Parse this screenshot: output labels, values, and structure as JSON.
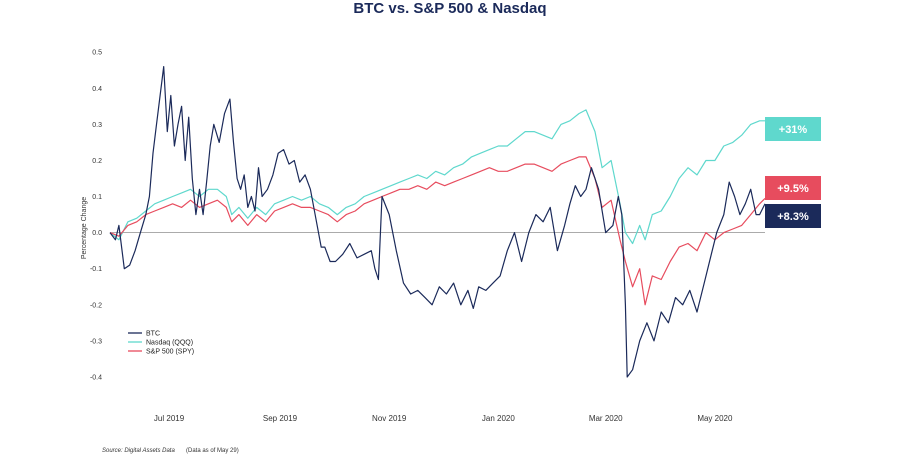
{
  "chart_data": {
    "type": "line",
    "title": "BTC vs. S&P 500 & Nasdaq",
    "ylabel": "Percentage Change",
    "ylim": [
      -0.45,
      0.52
    ],
    "xlim": [
      "2019-05-29",
      "2020-05-29"
    ],
    "yticks": [
      0.5,
      0.4,
      0.3,
      0.2,
      0.1,
      0.0,
      -0.1,
      -0.2,
      -0.3,
      -0.4
    ],
    "ytick_labels": [
      "0.5",
      "0.4",
      "0.3",
      "0.2",
      "0.1",
      "0.0",
      "-0.1",
      "-0.2",
      "-0.3",
      "-0.4"
    ],
    "xticks": [
      {
        "date": "2019-07-01",
        "label": "Jul 2019"
      },
      {
        "date": "2019-09-01",
        "label": "Sep 2019"
      },
      {
        "date": "2019-11-01",
        "label": "Nov 2019"
      },
      {
        "date": "2020-01-01",
        "label": "Jan 2020"
      },
      {
        "date": "2020-03-01",
        "label": "Mar 2020"
      },
      {
        "date": "2020-05-01",
        "label": "May 2020"
      }
    ],
    "legend_position": "bottom-left",
    "grid": false,
    "zero_line": true,
    "series": [
      {
        "name": "BTC",
        "color": "#1b2a5a",
        "x": [
          "2019-05-29",
          "2019-06-01",
          "2019-06-03",
          "2019-06-06",
          "2019-06-09",
          "2019-06-12",
          "2019-06-15",
          "2019-06-18",
          "2019-06-20",
          "2019-06-22",
          "2019-06-24",
          "2019-06-26",
          "2019-06-28",
          "2019-06-30",
          "2019-07-02",
          "2019-07-04",
          "2019-07-06",
          "2019-07-08",
          "2019-07-10",
          "2019-07-12",
          "2019-07-14",
          "2019-07-16",
          "2019-07-18",
          "2019-07-20",
          "2019-07-22",
          "2019-07-24",
          "2019-07-26",
          "2019-07-29",
          "2019-08-01",
          "2019-08-04",
          "2019-08-06",
          "2019-08-08",
          "2019-08-10",
          "2019-08-12",
          "2019-08-14",
          "2019-08-16",
          "2019-08-18",
          "2019-08-20",
          "2019-08-22",
          "2019-08-25",
          "2019-08-28",
          "2019-08-31",
          "2019-09-03",
          "2019-09-06",
          "2019-09-09",
          "2019-09-12",
          "2019-09-15",
          "2019-09-18",
          "2019-09-21",
          "2019-09-24",
          "2019-09-26",
          "2019-09-29",
          "2019-10-02",
          "2019-10-06",
          "2019-10-10",
          "2019-10-14",
          "2019-10-18",
          "2019-10-22",
          "2019-10-24",
          "2019-10-26",
          "2019-10-28",
          "2019-11-01",
          "2019-11-05",
          "2019-11-09",
          "2019-11-13",
          "2019-11-17",
          "2019-11-21",
          "2019-11-25",
          "2019-11-29",
          "2019-12-03",
          "2019-12-07",
          "2019-12-11",
          "2019-12-15",
          "2019-12-18",
          "2019-12-21",
          "2019-12-25",
          "2019-12-29",
          "2020-01-02",
          "2020-01-06",
          "2020-01-10",
          "2020-01-14",
          "2020-01-18",
          "2020-01-22",
          "2020-01-26",
          "2020-01-30",
          "2020-02-03",
          "2020-02-07",
          "2020-02-10",
          "2020-02-13",
          "2020-02-16",
          "2020-02-19",
          "2020-02-22",
          "2020-02-26",
          "2020-03-01",
          "2020-03-05",
          "2020-03-08",
          "2020-03-10",
          "2020-03-12",
          "2020-03-13",
          "2020-03-16",
          "2020-03-20",
          "2020-03-24",
          "2020-03-28",
          "2020-04-01",
          "2020-04-05",
          "2020-04-09",
          "2020-04-13",
          "2020-04-17",
          "2020-04-21",
          "2020-04-25",
          "2020-04-29",
          "2020-05-02",
          "2020-05-06",
          "2020-05-09",
          "2020-05-12",
          "2020-05-15",
          "2020-05-18",
          "2020-05-21",
          "2020-05-24",
          "2020-05-26",
          "2020-05-29"
        ],
        "values": [
          0.0,
          -0.02,
          0.02,
          -0.1,
          -0.09,
          -0.05,
          0.0,
          0.05,
          0.1,
          0.22,
          0.3,
          0.38,
          0.46,
          0.28,
          0.38,
          0.24,
          0.3,
          0.35,
          0.2,
          0.32,
          0.15,
          0.05,
          0.12,
          0.05,
          0.14,
          0.24,
          0.3,
          0.25,
          0.33,
          0.37,
          0.25,
          0.15,
          0.12,
          0.16,
          0.07,
          0.1,
          0.06,
          0.18,
          0.1,
          0.12,
          0.16,
          0.22,
          0.23,
          0.19,
          0.2,
          0.14,
          0.16,
          0.12,
          0.04,
          -0.04,
          -0.04,
          -0.08,
          -0.08,
          -0.06,
          -0.03,
          -0.07,
          -0.06,
          -0.05,
          -0.1,
          -0.13,
          0.1,
          0.05,
          -0.05,
          -0.14,
          -0.17,
          -0.16,
          -0.18,
          -0.2,
          -0.15,
          -0.17,
          -0.14,
          -0.2,
          -0.16,
          -0.21,
          -0.15,
          -0.16,
          -0.14,
          -0.12,
          -0.05,
          0.0,
          -0.08,
          0.0,
          0.05,
          0.03,
          0.07,
          -0.05,
          0.02,
          0.08,
          0.13,
          0.1,
          0.12,
          0.18,
          0.12,
          0.0,
          0.02,
          0.1,
          0.05,
          -0.2,
          -0.4,
          -0.38,
          -0.3,
          -0.25,
          -0.3,
          -0.22,
          -0.25,
          -0.18,
          -0.2,
          -0.16,
          -0.22,
          -0.14,
          -0.06,
          0.0,
          0.05,
          0.14,
          0.1,
          0.05,
          0.08,
          0.12,
          0.05,
          0.05,
          0.08
        ],
        "end_label": "+8.3%"
      },
      {
        "name": "Nasdaq (QQQ)",
        "color": "#5fd8cd",
        "x": [
          "2019-05-29",
          "2019-06-03",
          "2019-06-08",
          "2019-06-13",
          "2019-06-18",
          "2019-06-23",
          "2019-06-28",
          "2019-07-03",
          "2019-07-08",
          "2019-07-13",
          "2019-07-18",
          "2019-07-23",
          "2019-07-28",
          "2019-08-02",
          "2019-08-05",
          "2019-08-09",
          "2019-08-14",
          "2019-08-19",
          "2019-08-24",
          "2019-08-29",
          "2019-09-03",
          "2019-09-08",
          "2019-09-13",
          "2019-09-18",
          "2019-09-23",
          "2019-09-28",
          "2019-10-03",
          "2019-10-08",
          "2019-10-13",
          "2019-10-18",
          "2019-10-23",
          "2019-10-28",
          "2019-11-02",
          "2019-11-07",
          "2019-11-12",
          "2019-11-17",
          "2019-11-22",
          "2019-11-27",
          "2019-12-02",
          "2019-12-07",
          "2019-12-12",
          "2019-12-17",
          "2019-12-22",
          "2019-12-27",
          "2020-01-01",
          "2020-01-06",
          "2020-01-11",
          "2020-01-16",
          "2020-01-21",
          "2020-01-26",
          "2020-01-31",
          "2020-02-05",
          "2020-02-10",
          "2020-02-15",
          "2020-02-19",
          "2020-02-24",
          "2020-02-28",
          "2020-03-04",
          "2020-03-09",
          "2020-03-12",
          "2020-03-16",
          "2020-03-20",
          "2020-03-23",
          "2020-03-27",
          "2020-04-01",
          "2020-04-06",
          "2020-04-11",
          "2020-04-16",
          "2020-04-21",
          "2020-04-26",
          "2020-05-01",
          "2020-05-06",
          "2020-05-11",
          "2020-05-16",
          "2020-05-21",
          "2020-05-26",
          "2020-05-29"
        ],
        "values": [
          0.0,
          -0.02,
          0.03,
          0.04,
          0.06,
          0.08,
          0.09,
          0.1,
          0.11,
          0.12,
          0.1,
          0.12,
          0.12,
          0.1,
          0.05,
          0.07,
          0.04,
          0.07,
          0.05,
          0.08,
          0.09,
          0.1,
          0.09,
          0.1,
          0.08,
          0.07,
          0.05,
          0.07,
          0.08,
          0.1,
          0.11,
          0.12,
          0.13,
          0.14,
          0.15,
          0.16,
          0.15,
          0.17,
          0.16,
          0.18,
          0.19,
          0.21,
          0.22,
          0.23,
          0.24,
          0.24,
          0.26,
          0.28,
          0.28,
          0.27,
          0.26,
          0.3,
          0.31,
          0.33,
          0.34,
          0.28,
          0.18,
          0.2,
          0.08,
          0.0,
          -0.03,
          0.02,
          -0.02,
          0.05,
          0.06,
          0.1,
          0.15,
          0.18,
          0.16,
          0.2,
          0.2,
          0.24,
          0.25,
          0.27,
          0.3,
          0.31,
          0.31
        ],
        "end_label": "+31%"
      },
      {
        "name": "S&P 500 (SPY)",
        "color": "#e74c5e",
        "x": [
          "2019-05-29",
          "2019-06-03",
          "2019-06-08",
          "2019-06-13",
          "2019-06-18",
          "2019-06-23",
          "2019-06-28",
          "2019-07-03",
          "2019-07-08",
          "2019-07-13",
          "2019-07-18",
          "2019-07-23",
          "2019-07-28",
          "2019-08-02",
          "2019-08-05",
          "2019-08-09",
          "2019-08-14",
          "2019-08-19",
          "2019-08-24",
          "2019-08-29",
          "2019-09-03",
          "2019-09-08",
          "2019-09-13",
          "2019-09-18",
          "2019-09-23",
          "2019-09-28",
          "2019-10-03",
          "2019-10-08",
          "2019-10-13",
          "2019-10-18",
          "2019-10-23",
          "2019-10-28",
          "2019-11-02",
          "2019-11-07",
          "2019-11-12",
          "2019-11-17",
          "2019-11-22",
          "2019-11-27",
          "2019-12-02",
          "2019-12-07",
          "2019-12-12",
          "2019-12-17",
          "2019-12-22",
          "2019-12-27",
          "2020-01-01",
          "2020-01-06",
          "2020-01-11",
          "2020-01-16",
          "2020-01-21",
          "2020-01-26",
          "2020-01-31",
          "2020-02-05",
          "2020-02-10",
          "2020-02-15",
          "2020-02-19",
          "2020-02-24",
          "2020-02-28",
          "2020-03-04",
          "2020-03-09",
          "2020-03-12",
          "2020-03-16",
          "2020-03-20",
          "2020-03-23",
          "2020-03-27",
          "2020-04-01",
          "2020-04-06",
          "2020-04-11",
          "2020-04-16",
          "2020-04-21",
          "2020-04-26",
          "2020-05-01",
          "2020-05-06",
          "2020-05-11",
          "2020-05-16",
          "2020-05-21",
          "2020-05-26",
          "2020-05-29"
        ],
        "values": [
          0.0,
          -0.01,
          0.02,
          0.03,
          0.05,
          0.06,
          0.07,
          0.08,
          0.07,
          0.09,
          0.07,
          0.08,
          0.09,
          0.07,
          0.03,
          0.05,
          0.02,
          0.05,
          0.03,
          0.06,
          0.07,
          0.08,
          0.07,
          0.07,
          0.06,
          0.05,
          0.03,
          0.05,
          0.06,
          0.08,
          0.09,
          0.1,
          0.11,
          0.12,
          0.12,
          0.13,
          0.12,
          0.14,
          0.13,
          0.14,
          0.15,
          0.16,
          0.17,
          0.18,
          0.17,
          0.17,
          0.18,
          0.19,
          0.19,
          0.18,
          0.17,
          0.19,
          0.2,
          0.21,
          0.21,
          0.15,
          0.07,
          0.09,
          -0.02,
          -0.08,
          -0.15,
          -0.1,
          -0.2,
          -0.12,
          -0.13,
          -0.08,
          -0.04,
          -0.03,
          -0.05,
          0.0,
          -0.02,
          0.0,
          0.01,
          0.02,
          0.05,
          0.08,
          0.095
        ],
        "end_label": "+9.5%"
      }
    ]
  },
  "footer": {
    "source": "Source: Digital Assets Data",
    "note": "(Data as of May 29)"
  }
}
